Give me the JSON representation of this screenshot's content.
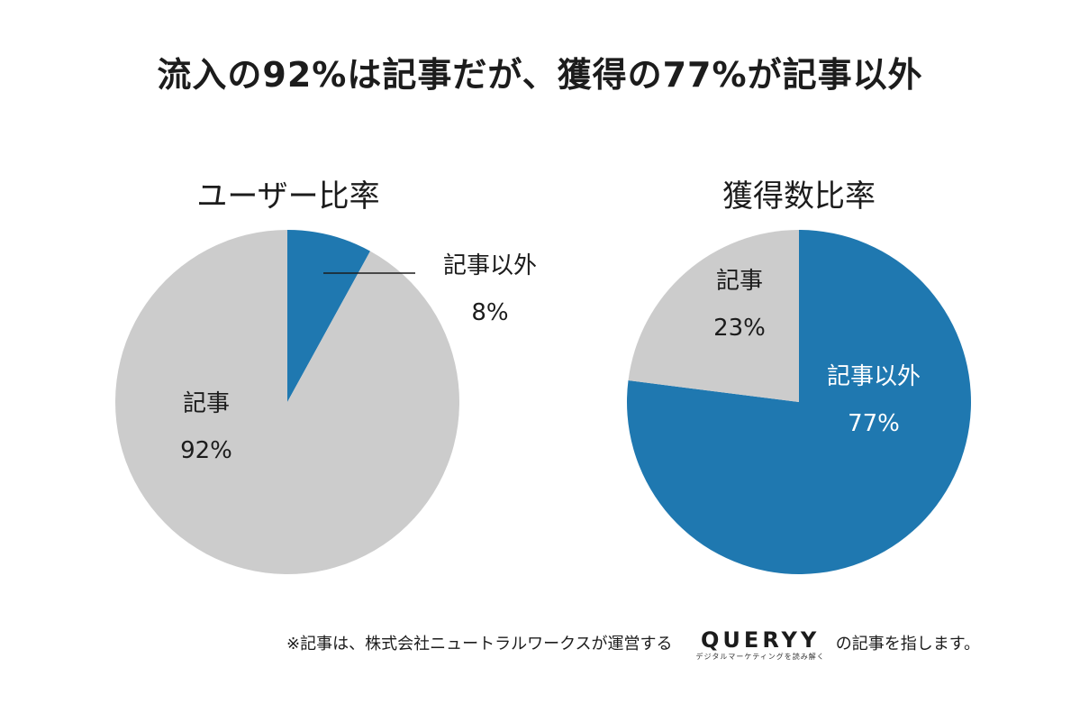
{
  "headline": "流入の92%は記事だが、獲得の77%が記事以外",
  "colors": {
    "article": "#cccccc",
    "other": "#1f78b0",
    "label_dark": "#1c1c1c",
    "label_light": "#ffffff"
  },
  "chart_data": [
    {
      "type": "pie",
      "title": "ユーザー比率",
      "slices": [
        {
          "name": "記事以外",
          "value": 8,
          "value_label": "8%",
          "color": "#1f78b0"
        },
        {
          "name": "記事",
          "value": 92,
          "value_label": "92%",
          "color": "#cccccc"
        }
      ]
    },
    {
      "type": "pie",
      "title": "獲得数比率",
      "slices": [
        {
          "name": "記事以外",
          "value": 77,
          "value_label": "77%",
          "color": "#1f78b0"
        },
        {
          "name": "記事",
          "value": 23,
          "value_label": "23%",
          "color": "#cccccc"
        }
      ]
    }
  ],
  "footnote": {
    "before": "※記事は、株式会社ニュートラルワークスが運営する",
    "logo_word": "QUERYY",
    "logo_tagline": "デジタルマーケティングを読み解く",
    "after": "の記事を指します。"
  }
}
